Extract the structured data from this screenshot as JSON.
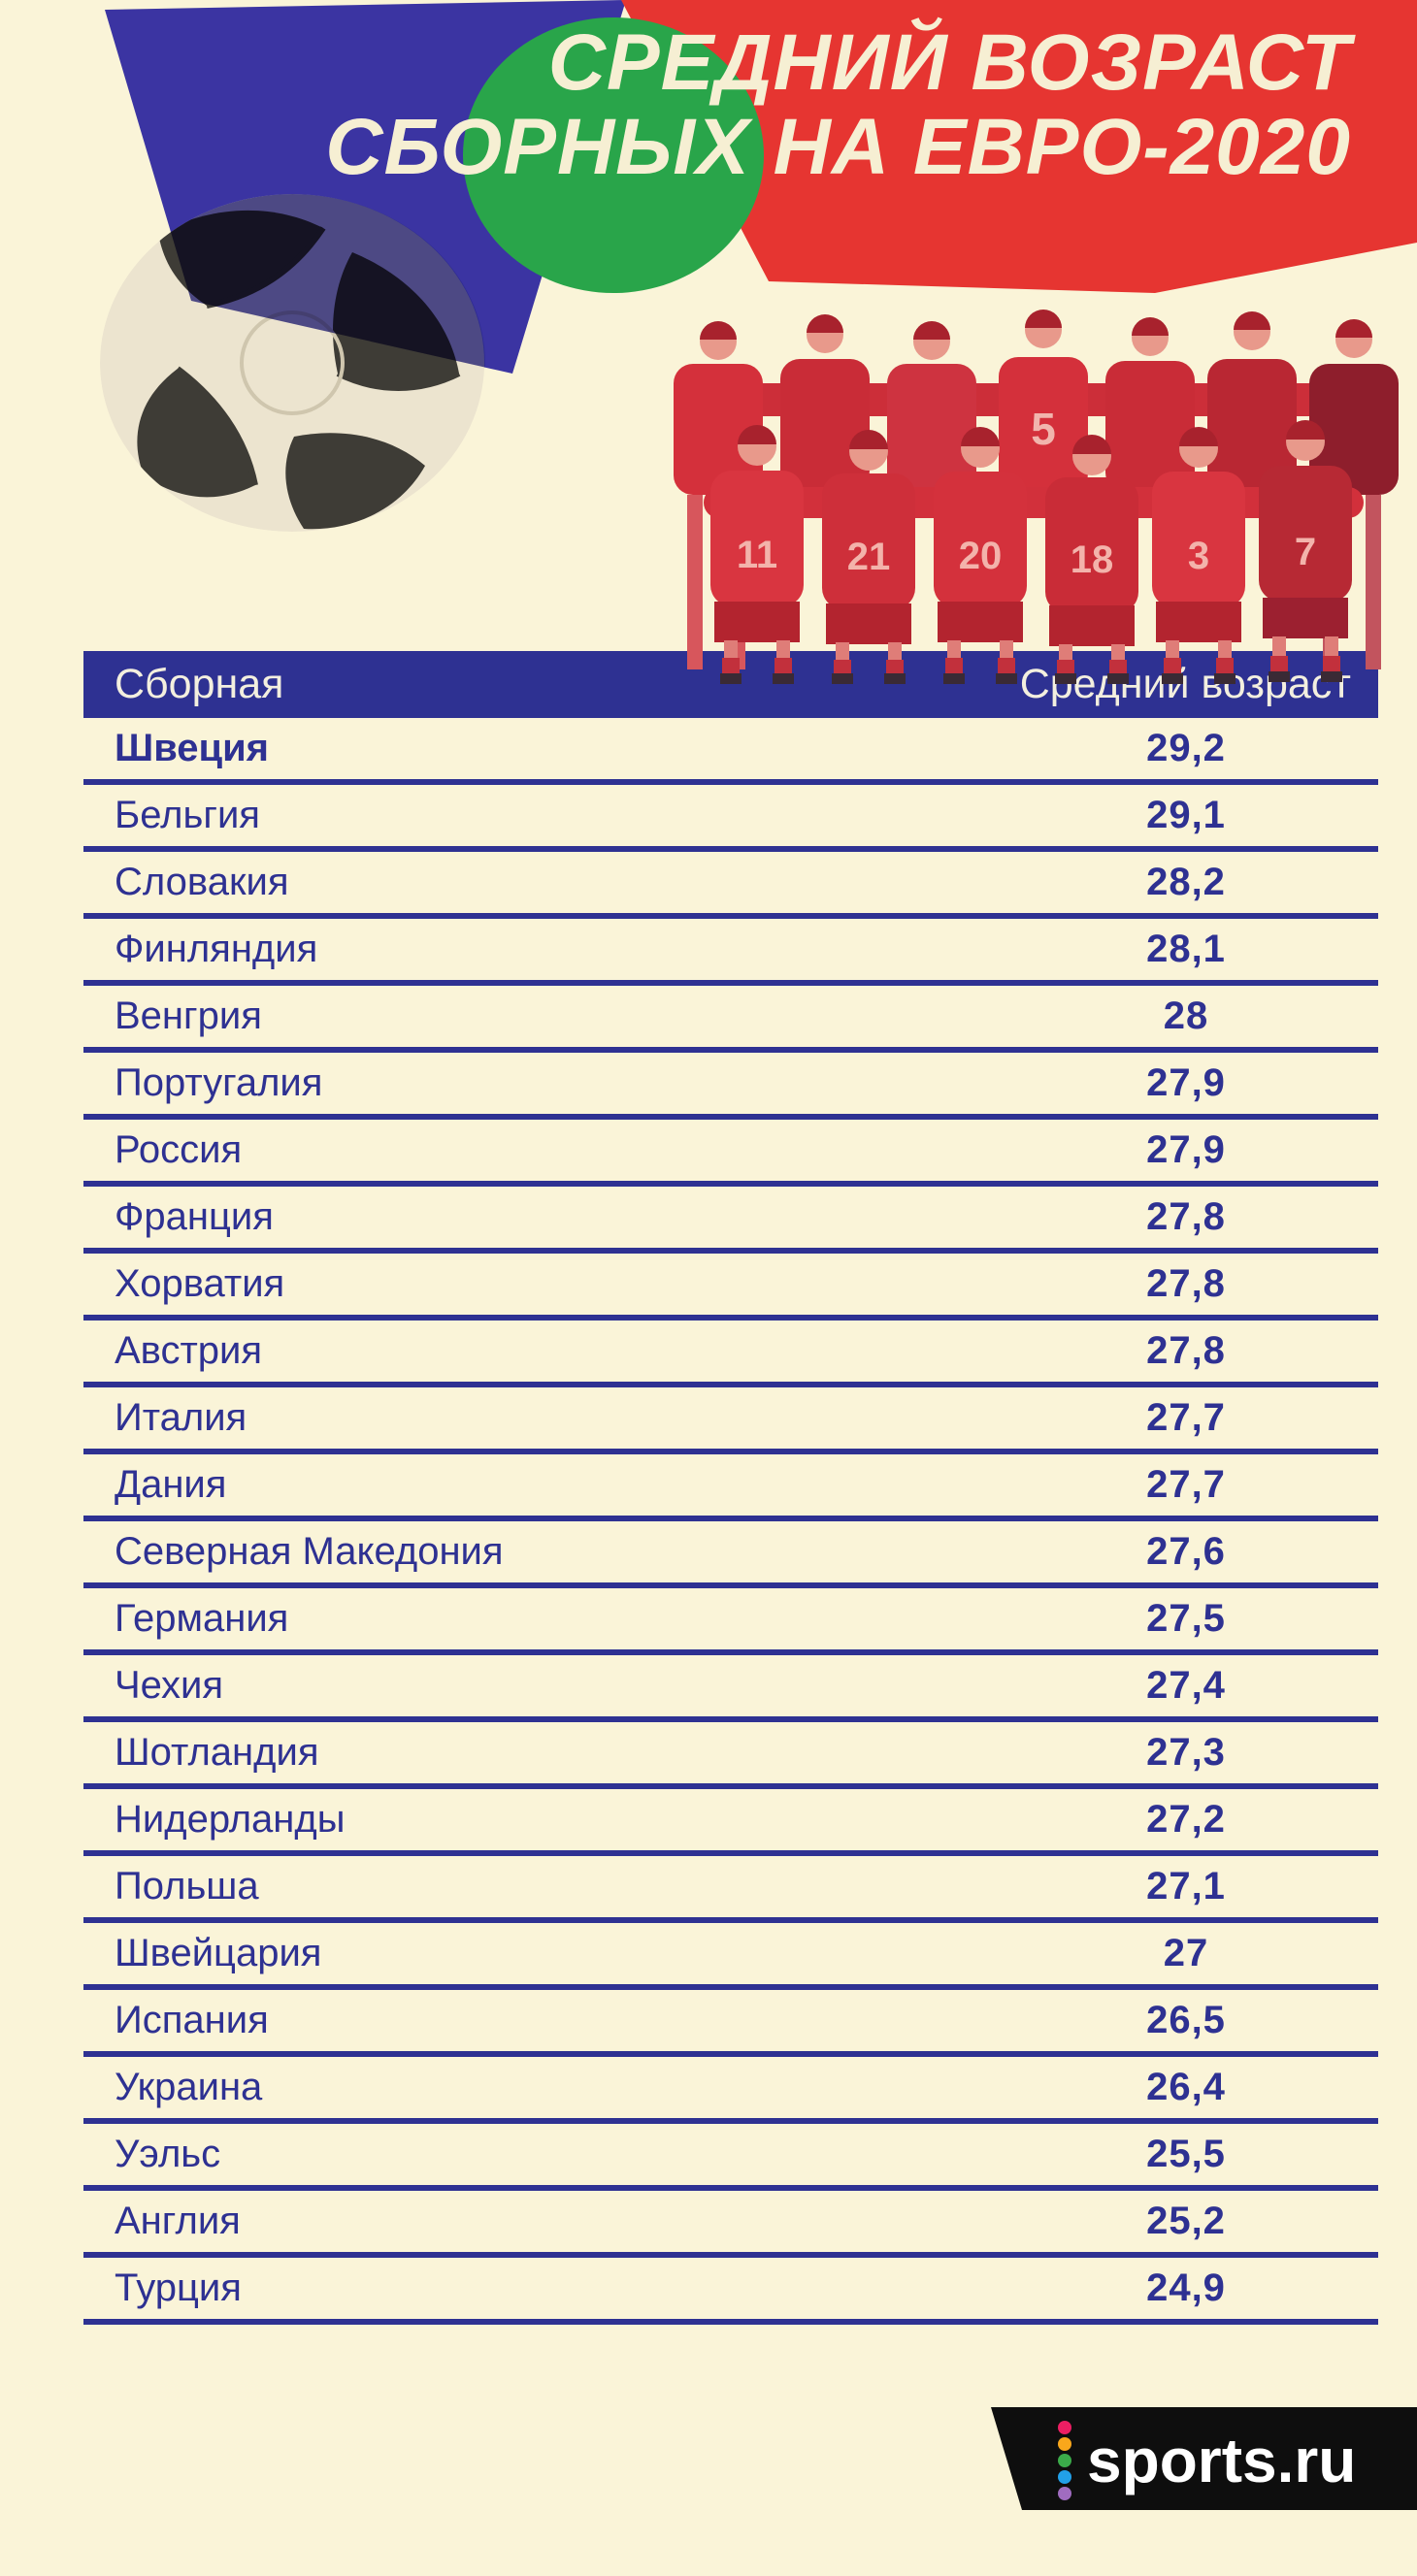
{
  "title": {
    "line1": "СРЕДНИЙ ВОЗРАСТ",
    "line2": "СБОРНЫХ НА ЕВРО-2020"
  },
  "table": {
    "col_team": "Сборная",
    "col_age": "Средний возраст",
    "rows": [
      {
        "team": "Швеция",
        "age": "29,2",
        "highlight": true
      },
      {
        "team": "Бельгия",
        "age": "29,1"
      },
      {
        "team": "Словакия",
        "age": "28,2"
      },
      {
        "team": "Финляндия",
        "age": "28,1"
      },
      {
        "team": "Венгрия",
        "age": "28"
      },
      {
        "team": "Португалия",
        "age": "27,9"
      },
      {
        "team": "Россия",
        "age": "27,9"
      },
      {
        "team": "Франция",
        "age": "27,8"
      },
      {
        "team": "Хорватия",
        "age": "27,8"
      },
      {
        "team": "Австрия",
        "age": "27,8"
      },
      {
        "team": "Италия",
        "age": "27,7"
      },
      {
        "team": "Дания",
        "age": "27,7"
      },
      {
        "team": "Северная Македония",
        "age": "27,6"
      },
      {
        "team": "Германия",
        "age": "27,5"
      },
      {
        "team": "Чехия",
        "age": "27,4"
      },
      {
        "team": "Шотландия",
        "age": "27,3"
      },
      {
        "team": "Нидерланды",
        "age": "27,2"
      },
      {
        "team": "Польша",
        "age": "27,1"
      },
      {
        "team": "Швейцария",
        "age": "27"
      },
      {
        "team": "Испания",
        "age": "26,5"
      },
      {
        "team": "Украина",
        "age": "26,4"
      },
      {
        "team": "Уэльс",
        "age": "25,5"
      },
      {
        "team": "Англия",
        "age": "25,2"
      },
      {
        "team": "Турция",
        "age": "24,9"
      }
    ]
  },
  "chart_data": {
    "type": "table",
    "title": "СРЕДНИЙ ВОЗРАСТ СБОРНЫХ НА ЕВРО-2020",
    "columns": [
      "Сборная",
      "Средний возраст"
    ],
    "rows": [
      [
        "Швеция",
        29.2
      ],
      [
        "Бельгия",
        29.1
      ],
      [
        "Словакия",
        28.2
      ],
      [
        "Финляндия",
        28.1
      ],
      [
        "Венгрия",
        28
      ],
      [
        "Португалия",
        27.9
      ],
      [
        "Россия",
        27.9
      ],
      [
        "Франция",
        27.8
      ],
      [
        "Хорватия",
        27.8
      ],
      [
        "Австрия",
        27.8
      ],
      [
        "Италия",
        27.7
      ],
      [
        "Дания",
        27.7
      ],
      [
        "Северная Македония",
        27.6
      ],
      [
        "Германия",
        27.5
      ],
      [
        "Чехия",
        27.4
      ],
      [
        "Шотландия",
        27.3
      ],
      [
        "Нидерланды",
        27.2
      ],
      [
        "Польша",
        27.1
      ],
      [
        "Швейцария",
        27
      ],
      [
        "Испания",
        26.5
      ],
      [
        "Украина",
        26.4
      ],
      [
        "Уэльс",
        25.5
      ],
      [
        "Англия",
        25.2
      ],
      [
        "Турция",
        24.9
      ]
    ]
  },
  "photo": {
    "jersey_numbers": [
      "5",
      "11",
      "21",
      "20",
      "18",
      "3",
      "7"
    ]
  },
  "footer": {
    "logo_text": "sports.ru",
    "dot_colors": [
      "#ec1e63",
      "#f9a71b",
      "#3bab4a",
      "#22a0e8",
      "#a06cc0"
    ]
  },
  "colors": {
    "background": "#faf4d8",
    "navy": "#2e3192",
    "blue_shape": "#3b34a2",
    "red_shape": "#e63531",
    "green_shape": "#29a54a",
    "title_cream": "#f6efd3",
    "footer_black": "#0e0e0e",
    "photo_red": "#d4303b"
  }
}
